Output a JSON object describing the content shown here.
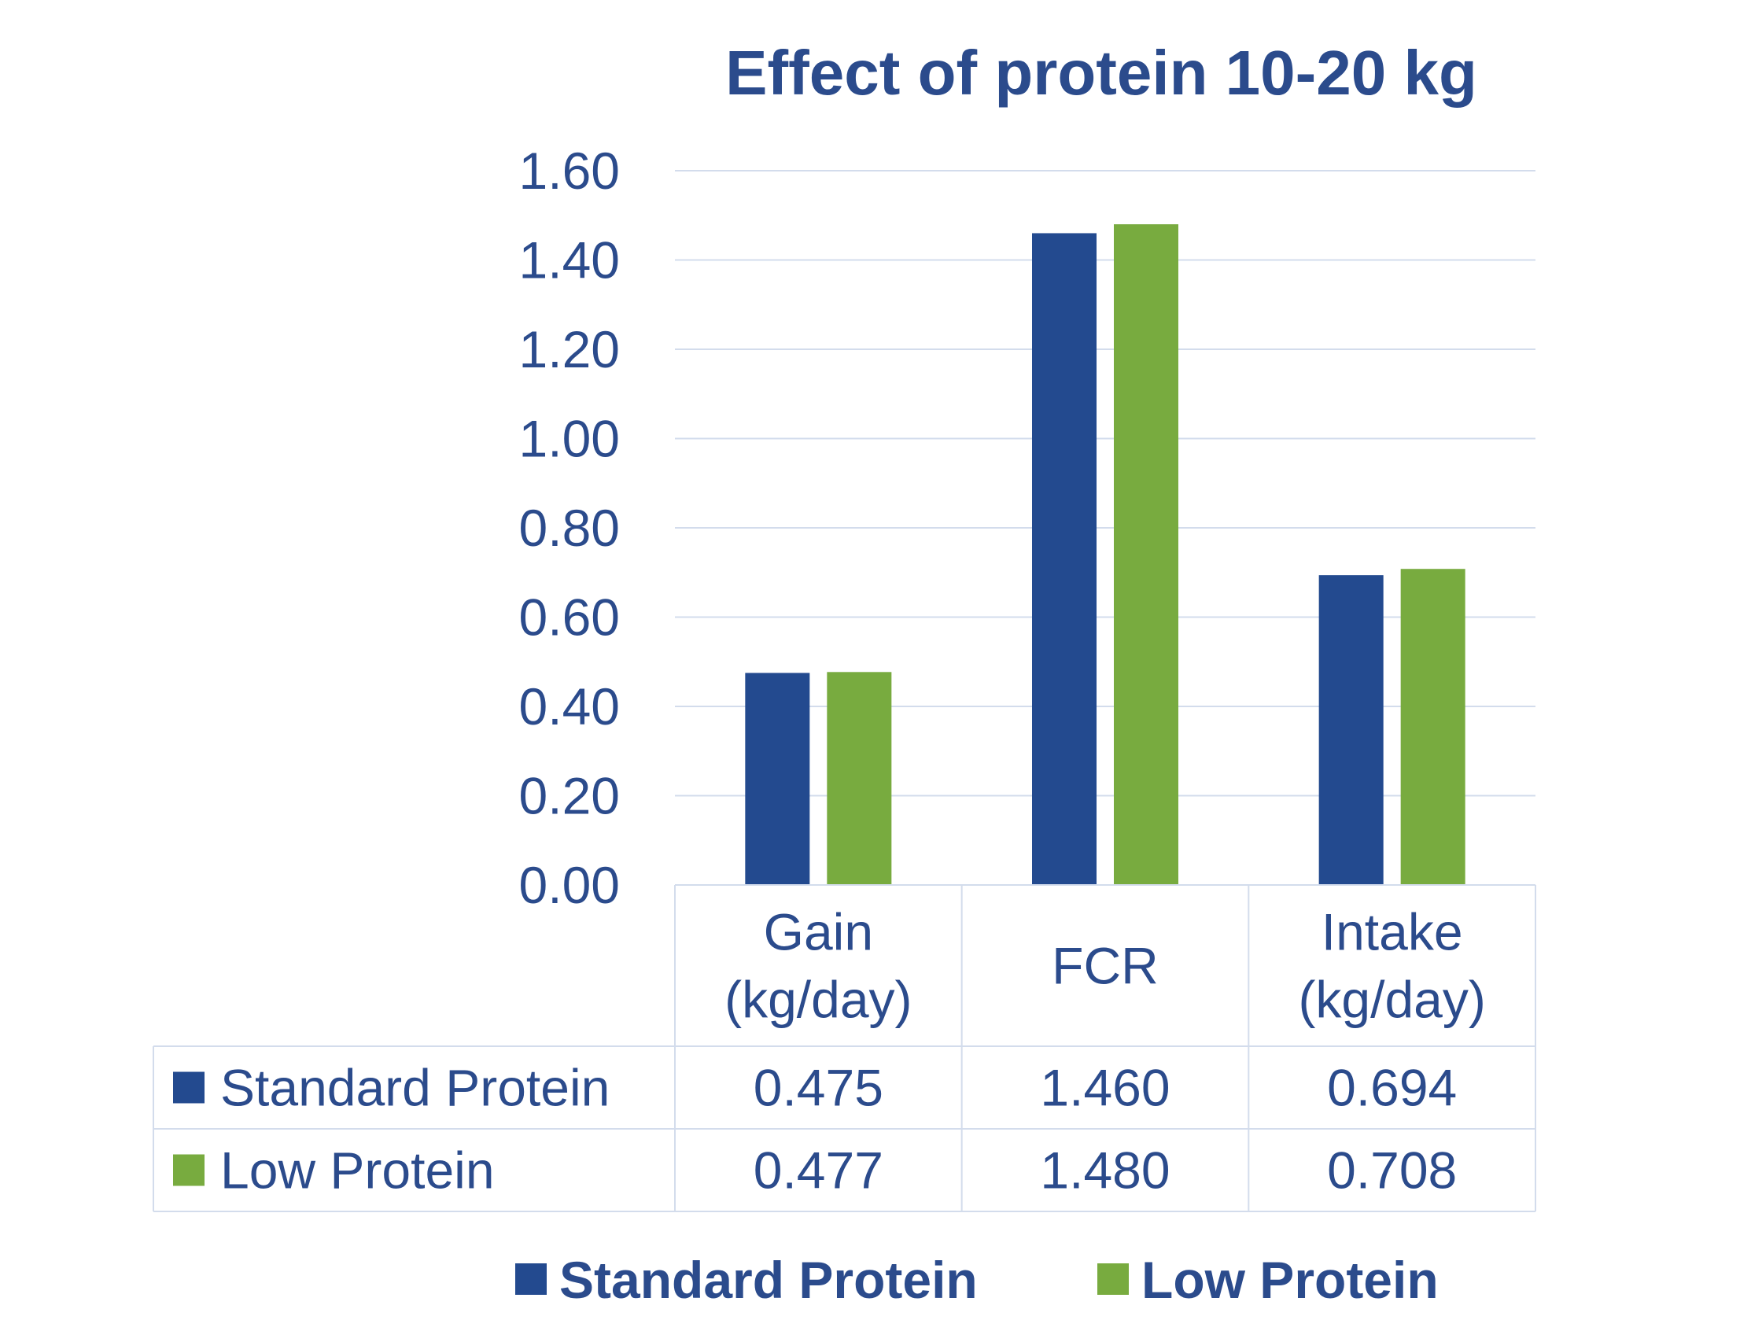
{
  "chart_data": {
    "type": "bar",
    "title": "Effect of protein 10-20 kg",
    "categories": [
      [
        "Gain",
        "(kg/day)"
      ],
      [
        "FCR"
      ],
      [
        "Intake",
        "(kg/day)"
      ]
    ],
    "yticks": [
      "0.00",
      "0.20",
      "0.40",
      "0.60",
      "0.80",
      "1.00",
      "1.20",
      "1.40",
      "1.60"
    ],
    "ylim": [
      0,
      1.6
    ],
    "grid": true,
    "legend_position": "bottom",
    "data_table": true,
    "series": [
      {
        "name": "Standard Protein",
        "color": "#234a8f",
        "values": [
          0.475,
          1.46,
          0.694
        ],
        "labels": [
          "0.475",
          "1.460",
          "0.694"
        ]
      },
      {
        "name": "Low Protein",
        "color": "#78ab3f",
        "values": [
          0.477,
          1.48,
          0.708
        ],
        "labels": [
          "0.477",
          "1.480",
          "0.708"
        ]
      }
    ]
  }
}
